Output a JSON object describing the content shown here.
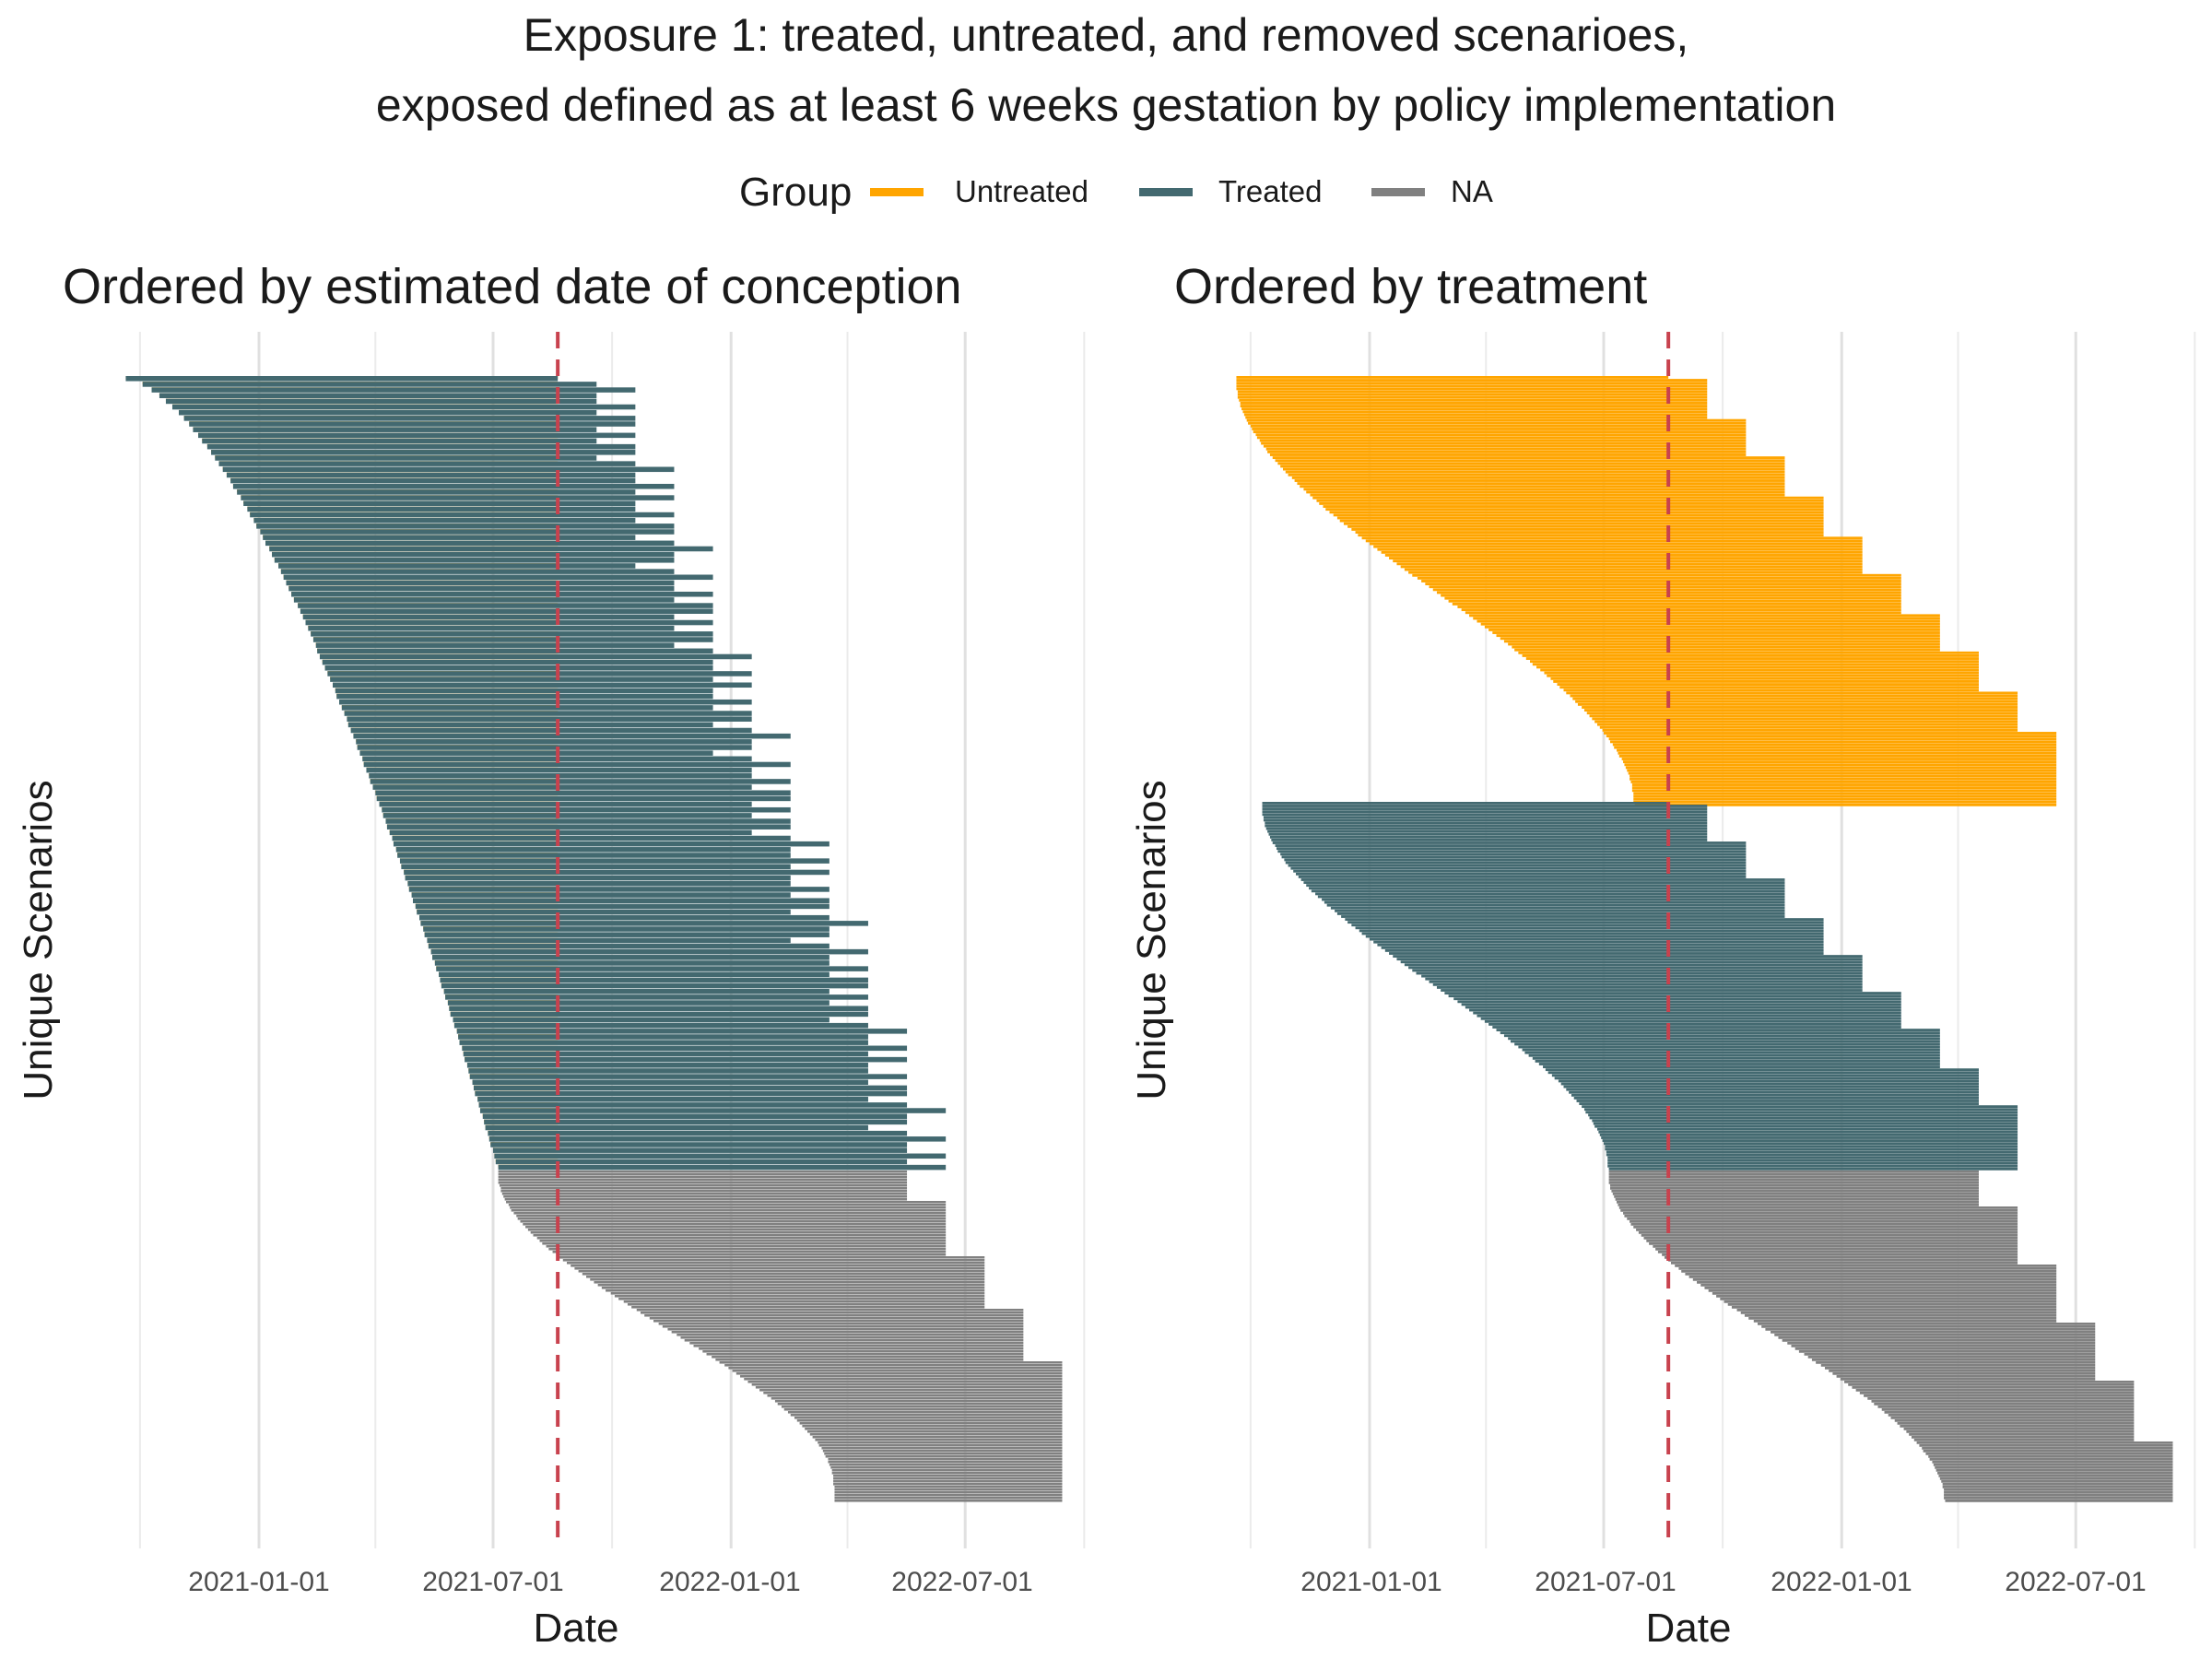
{
  "title_line1": "Exposure 1: treated, untreated, and removed scenarioes,",
  "title_line2": "exposed defined as at least 6 weeks gestation by policy implementation",
  "legend": {
    "title": "Group",
    "items": [
      {
        "label": "Untreated",
        "color": "#FFA500"
      },
      {
        "label": "Treated",
        "color": "#436970"
      },
      {
        "label": "NA",
        "color": "#808080"
      }
    ]
  },
  "chart_data": [
    {
      "type": "gantt-bar",
      "title": "Ordered by estimated date of conception",
      "xlabel": "Date",
      "ylabel": "Unique Scenarios",
      "x_ticks": [
        "2021-01-01",
        "2021-07-01",
        "2022-01-01",
        "2022-07-01"
      ],
      "x_range": [
        "2020-08-25",
        "2022-09-10"
      ],
      "reference_line": {
        "date": "2021-08-20",
        "color": "#C8424E",
        "style": "dashed"
      },
      "ordering": "estimated date of conception",
      "series": [
        {
          "name": "Untreated",
          "color": "#FFA500",
          "conception_start": "2020-09-20",
          "conception_end": "2021-07-05",
          "end_date": "2021-08-20"
        },
        {
          "name": "Treated",
          "color": "#436970",
          "start_date": "2021-08-20",
          "end_date_range": [
            "2021-08-20",
            "2022-06-01"
          ]
        },
        {
          "name": "NA",
          "color": "#808080",
          "conception_start": "2021-07-05",
          "conception_end": "2022-03-22",
          "end_date_range": [
            "2022-05-01",
            "2022-08-25"
          ]
        }
      ]
    },
    {
      "type": "gantt-bar",
      "title": "Ordered by treatment",
      "xlabel": "Date",
      "ylabel": "Unique Scenarios",
      "x_ticks": [
        "2021-01-01",
        "2021-07-01",
        "2022-01-01",
        "2022-07-01"
      ],
      "x_range": [
        "2020-08-25",
        "2022-09-10"
      ],
      "reference_line": {
        "date": "2021-08-20",
        "color": "#C8424E",
        "style": "dashed"
      },
      "ordering": "treatment group",
      "series": [
        {
          "name": "Untreated",
          "color": "#FFA500",
          "start_range": [
            "2020-09-20",
            "2021-07-25"
          ],
          "end_range": [
            "2021-08-20",
            "2022-06-01"
          ]
        },
        {
          "name": "Treated",
          "color": "#436970",
          "start_range": [
            "2020-10-10",
            "2021-07-05"
          ],
          "end_range": [
            "2021-08-20",
            "2022-05-01"
          ]
        },
        {
          "name": "NA",
          "color": "#808080",
          "start_range": [
            "2021-07-05",
            "2022-03-22"
          ],
          "end_range": [
            "2022-04-01",
            "2022-08-25"
          ]
        }
      ]
    }
  ]
}
